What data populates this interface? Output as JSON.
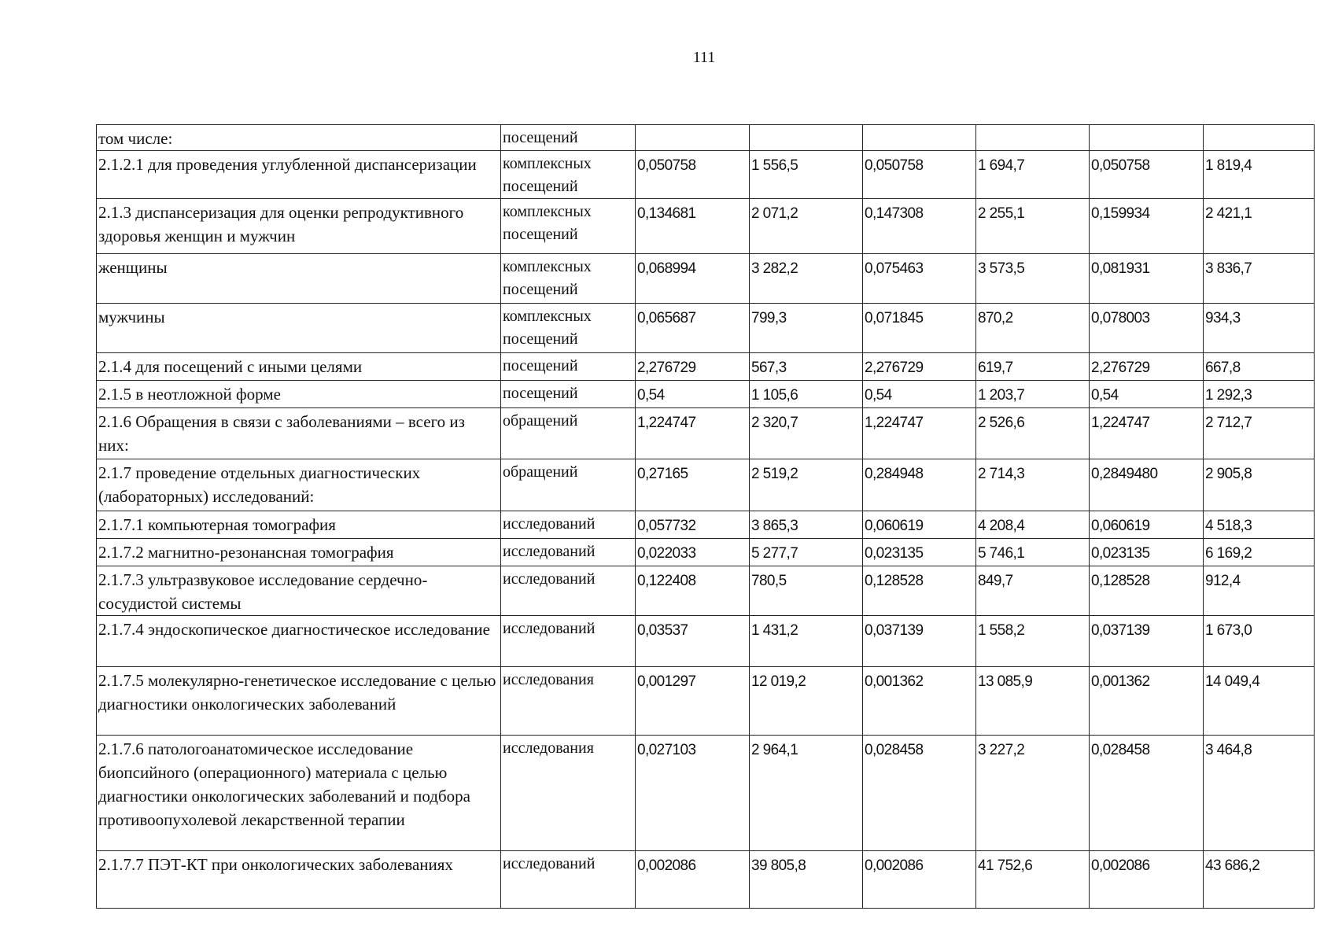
{
  "page_number": "111",
  "table": {
    "rows": [
      {
        "name": "том числе:",
        "unit": "посещений",
        "values": [
          "",
          "",
          "",
          "",
          "",
          ""
        ]
      },
      {
        "name": "2.1.2.1 для проведения углубленной диспансеризации",
        "unit": "комплексных посещений",
        "values": [
          "0,050758",
          "1 556,5",
          "0,050758",
          "1 694,7",
          "0,050758",
          "1 819,4"
        ]
      },
      {
        "name": "2.1.3 диспансеризация для оценки репродуктивного здоровья женщин и мужчин",
        "unit": "комплексных посещений",
        "values": [
          "0,134681",
          "2 071,2",
          "0,147308",
          "2 255,1",
          "0,159934",
          "2 421,1"
        ]
      },
      {
        "name": "женщины",
        "unit": "комплексных посещений",
        "values": [
          "0,068994",
          "3 282,2",
          "0,075463",
          "3 573,5",
          "0,081931",
          "3 836,7"
        ]
      },
      {
        "name": "мужчины",
        "unit": "комплексных посещений",
        "values": [
          "0,065687",
          "799,3",
          "0,071845",
          "870,2",
          "0,078003",
          "934,3"
        ]
      },
      {
        "name": "2.1.4 для посещений с иными целями",
        "unit": "посещений",
        "values": [
          "2,276729",
          "567,3",
          "2,276729",
          "619,7",
          "2,276729",
          "667,8"
        ]
      },
      {
        "name": "2.1.5 в неотложной форме",
        "unit": "посещений",
        "values": [
          "0,54",
          "1 105,6",
          "0,54",
          "1 203,7",
          "0,54",
          "1 292,3"
        ]
      },
      {
        "name": "2.1.6 Обращения в связи с заболеваниями – всего из них:",
        "unit": "обращений",
        "values": [
          "1,224747",
          "2 320,7",
          "1,224747",
          "2 526,6",
          "1,224747",
          "2 712,7"
        ]
      },
      {
        "name": "2.1.7 проведение отдельных диагностических (лабораторных) исследований:",
        "unit": "обращений",
        "values": [
          "0,27165",
          "2 519,2",
          "0,284948",
          "2 714,3",
          "0,2849480",
          "2 905,8"
        ]
      },
      {
        "name": "2.1.7.1 компьютерная томография",
        "unit": "исследований",
        "values": [
          "0,057732",
          "3 865,3",
          "0,060619",
          "4 208,4",
          "0,060619",
          "4 518,3"
        ]
      },
      {
        "name": "2.1.7.2 магнитно-резонансная томография",
        "unit": "исследований",
        "values": [
          "0,022033",
          "5 277,7",
          "0,023135",
          "5 746,1",
          "0,023135",
          "6 169,2"
        ]
      },
      {
        "name": "2.1.7.3 ультразвуковое исследование сердечно-сосудистой системы",
        "unit": "исследований",
        "values": [
          "0,122408",
          "780,5",
          "0,128528",
          "849,7",
          "0,128528",
          "912,4"
        ]
      },
      {
        "name": "2.1.7.4 эндоскопическое диагностическое исследование",
        "unit": "исследований",
        "values": [
          "0,03537",
          "1 431,2",
          "0,037139",
          "1 558,2",
          "0,037139",
          "1 673,0"
        ]
      },
      {
        "name": "2.1.7.5 молекулярно-генетическое исследование с целью диагностики онкологических заболеваний",
        "unit": "исследования",
        "values": [
          "0,001297",
          "12 019,2",
          "0,001362",
          "13 085,9",
          "0,001362",
          "14 049,4"
        ]
      },
      {
        "name": "2.1.7.6 патологоанатомическое исследование биопсийного (операционного) материала с целью диагностики онкологических заболеваний и подбора противоопухолевой лекарственной терапии",
        "unit": "исследования",
        "values": [
          "0,027103",
          "2 964,1",
          "0,028458",
          "3 227,2",
          "0,028458",
          "3 464,8"
        ]
      },
      {
        "name": "2.1.7.7 ПЭТ-КТ при онкологических заболеваниях",
        "unit": "исследований",
        "values": [
          "0,002086",
          "39 805,8",
          "0,002086",
          "41 752,6",
          "0,002086",
          "43 686,2"
        ]
      }
    ]
  }
}
